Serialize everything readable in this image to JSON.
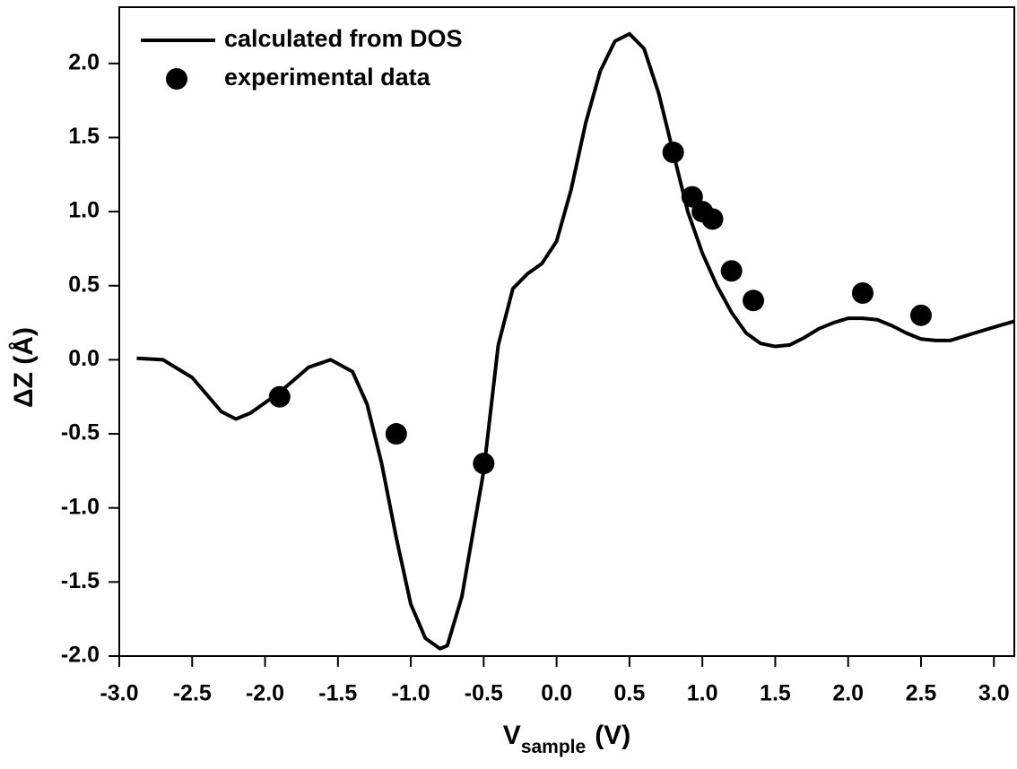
{
  "chart_data": {
    "type": "line",
    "x_label": {
      "main": "V",
      "subscript": "sample",
      "suffix": "(V)"
    },
    "y_label": "ΔZ (Å)",
    "xlim": [
      -3.0,
      3.14
    ],
    "ylim": [
      -2.0,
      2.38
    ],
    "xticks": [
      {
        "value": -3,
        "label": "-3.0"
      },
      -2.5,
      {
        "value": -2,
        "label": "-2.0"
      },
      -1.5,
      {
        "value": -1,
        "label": "-1.0"
      },
      -0.5,
      {
        "value": 0,
        "label": "0.0"
      },
      0.5,
      {
        "value": 1,
        "label": "1.0"
      },
      1.5,
      {
        "value": 2,
        "label": "2.0"
      },
      2.5,
      {
        "value": 3,
        "label": "3.0"
      }
    ],
    "yticks": [
      {
        "value": -2,
        "label": "-2.0"
      },
      -1.5,
      {
        "value": -1,
        "label": "-1.0"
      },
      -0.5,
      {
        "value": 0,
        "label": "0.0"
      },
      0.5,
      {
        "value": 1,
        "label": "1.0"
      },
      1.5,
      {
        "value": 2,
        "label": "2.0"
      }
    ],
    "legend": "upper-left",
    "series": [
      {
        "name": "calculated from DOS",
        "type": "line",
        "color": "#000000",
        "x": [
          -2.88,
          -2.7,
          -2.5,
          -2.3,
          -2.2,
          -2.1,
          -1.9,
          -1.7,
          -1.55,
          -1.4,
          -1.3,
          -1.2,
          -1.1,
          -1.0,
          -0.9,
          -0.8,
          -0.75,
          -0.65,
          -0.5,
          -0.4,
          -0.3,
          -0.2,
          -0.1,
          0.0,
          0.1,
          0.2,
          0.3,
          0.4,
          0.5,
          0.6,
          0.7,
          0.8,
          0.9,
          1.0,
          1.1,
          1.2,
          1.3,
          1.4,
          1.5,
          1.6,
          1.7,
          1.8,
          1.9,
          2.0,
          2.1,
          2.2,
          2.3,
          2.4,
          2.5,
          2.6,
          2.7,
          2.8,
          2.9,
          3.0,
          3.14
        ],
        "values": [
          0.01,
          0.0,
          -0.12,
          -0.35,
          -0.4,
          -0.36,
          -0.22,
          -0.05,
          0.0,
          -0.08,
          -0.3,
          -0.7,
          -1.2,
          -1.65,
          -1.88,
          -1.95,
          -1.93,
          -1.6,
          -0.75,
          0.1,
          0.48,
          0.58,
          0.65,
          0.8,
          1.15,
          1.6,
          1.95,
          2.15,
          2.2,
          2.1,
          1.8,
          1.4,
          1.0,
          0.72,
          0.5,
          0.32,
          0.18,
          0.11,
          0.09,
          0.1,
          0.15,
          0.21,
          0.25,
          0.28,
          0.28,
          0.27,
          0.23,
          0.18,
          0.14,
          0.13,
          0.13,
          0.16,
          0.19,
          0.22,
          0.26
        ]
      },
      {
        "name": "experimental data",
        "type": "scatter",
        "color": "#000000",
        "x": [
          -1.9,
          -1.1,
          -0.5,
          0.8,
          0.93,
          1.0,
          1.07,
          1.2,
          1.35,
          2.1,
          2.5
        ],
        "values": [
          -0.25,
          -0.5,
          -0.7,
          1.4,
          1.1,
          1.0,
          0.95,
          0.6,
          0.4,
          0.45,
          0.3
        ]
      }
    ]
  }
}
